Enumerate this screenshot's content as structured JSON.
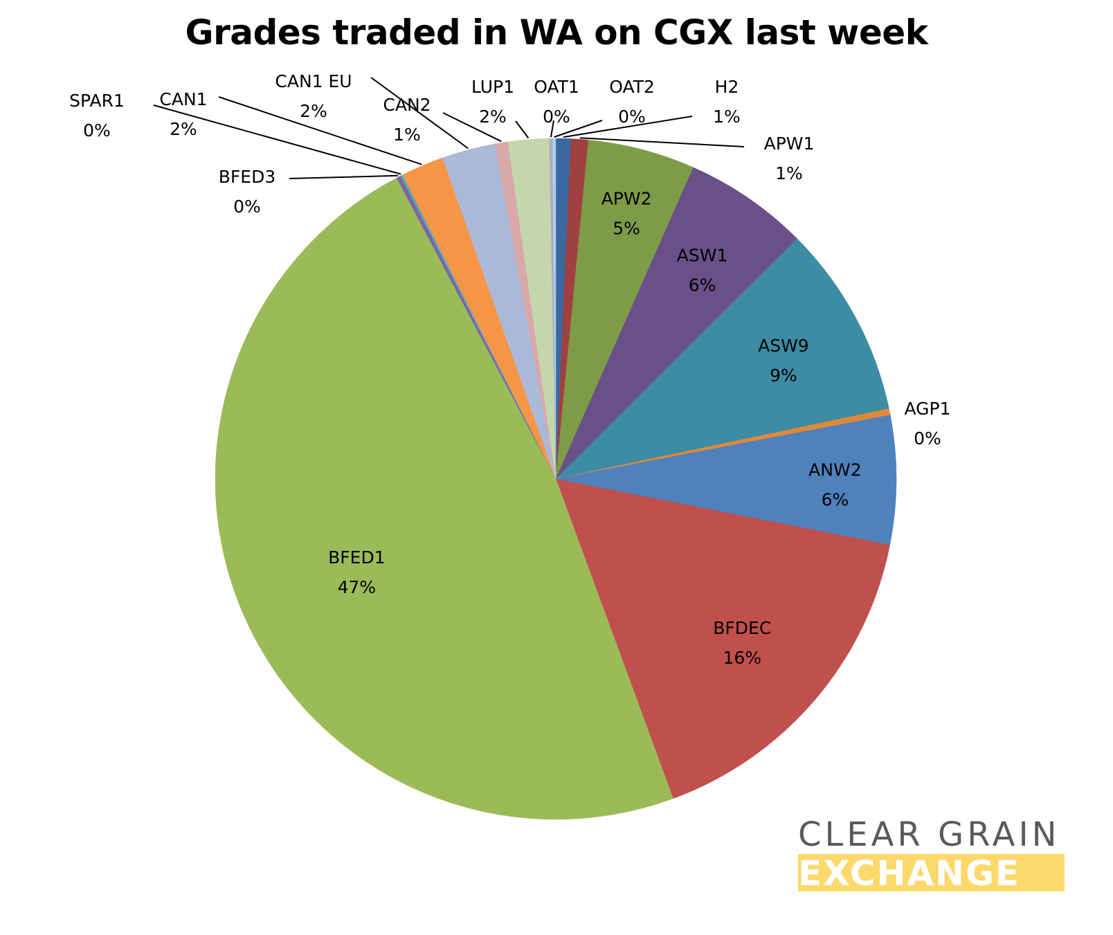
{
  "chart_data": {
    "type": "pie",
    "title": "Grades traded in WA on CGX last week",
    "slices": [
      {
        "label": "H2",
        "pct_label": "1%",
        "value": 0.7,
        "color": "#3b68a0"
      },
      {
        "label": "APW1",
        "pct_label": "1%",
        "value": 0.8,
        "color": "#a04040"
      },
      {
        "label": "APW2",
        "pct_label": "5%",
        "value": 5.0,
        "color": "#7e9b48"
      },
      {
        "label": "ASW1",
        "pct_label": "6%",
        "value": 5.8,
        "color": "#6a5088"
      },
      {
        "label": "ASW9",
        "pct_label": "9%",
        "value": 9.0,
        "color": "#3d8ca4"
      },
      {
        "label": "AGP1",
        "pct_label": "0%",
        "value": 0.3,
        "color": "#e0883a"
      },
      {
        "label": "ANW2",
        "pct_label": "6%",
        "value": 6.0,
        "color": "#4f81bd"
      },
      {
        "label": "BFDEC",
        "pct_label": "16%",
        "value": 16.0,
        "color": "#c0504d"
      },
      {
        "label": "BFED1",
        "pct_label": "47%",
        "value": 47.0,
        "color": "#9bbb59"
      },
      {
        "label": "BFED3",
        "pct_label": "0%",
        "value": 0.2,
        "color": "#8064a2"
      },
      {
        "label": "SPAR1",
        "pct_label": "0%",
        "value": 0.1,
        "color": "#4bacc6"
      },
      {
        "label": "CAN1",
        "pct_label": "2%",
        "value": 2.0,
        "color": "#f79646"
      },
      {
        "label": "CAN1 EU",
        "pct_label": "2%",
        "value": 2.5,
        "color": "#aab9d8"
      },
      {
        "label": "CAN2",
        "pct_label": "1%",
        "value": 0.6,
        "color": "#d9a8a8"
      },
      {
        "label": "LUP1",
        "pct_label": "2%",
        "value": 1.9,
        "color": "#c4d7ac"
      },
      {
        "label": "OAT1",
        "pct_label": "0%",
        "value": 0.15,
        "color": "#b5a8cb"
      },
      {
        "label": "OAT2",
        "pct_label": "0%",
        "value": 0.15,
        "color": "#a8d3e0"
      }
    ],
    "legend": "none",
    "data_labels": "category name and percentage"
  },
  "logo": {
    "line1": "CLEAR GRAIN",
    "line2": "EXCHANGE",
    "colors": {
      "line1": "#5a5a5a",
      "band": "#fdd86a",
      "line2": "#ffffff"
    }
  }
}
